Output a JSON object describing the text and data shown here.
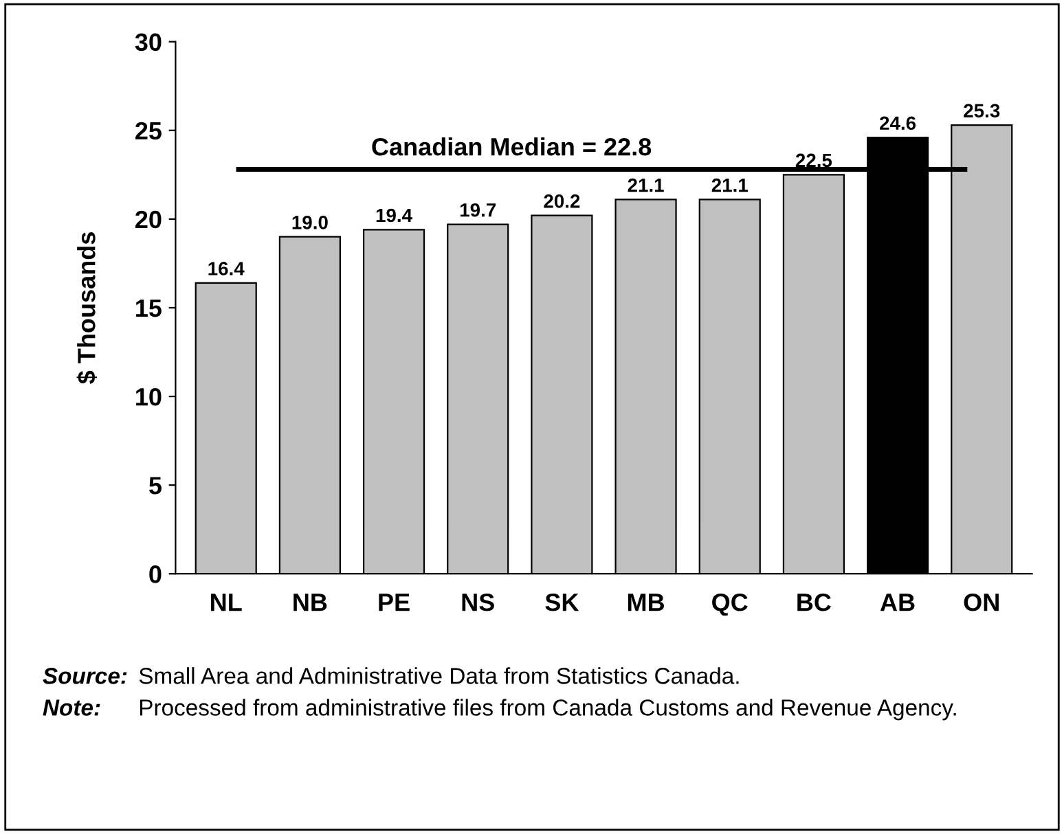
{
  "chart_data": {
    "type": "bar",
    "ylabel": "$ Thousands",
    "categories": [
      "NL",
      "NB",
      "PE",
      "NS",
      "SK",
      "MB",
      "QC",
      "BC",
      "AB",
      "ON"
    ],
    "values": [
      16.4,
      19.0,
      19.4,
      19.7,
      20.2,
      21.1,
      21.1,
      22.5,
      24.6,
      25.3
    ],
    "value_labels": [
      "16.4",
      "19.0",
      "19.4",
      "19.7",
      "20.2",
      "21.1",
      "21.1",
      "22.5",
      "24.6",
      "25.3"
    ],
    "colors": [
      "#c0c0c0",
      "#c0c0c0",
      "#c0c0c0",
      "#c0c0c0",
      "#c0c0c0",
      "#c0c0c0",
      "#c0c0c0",
      "#c0c0c0",
      "#000000",
      "#c0c0c0"
    ],
    "ylim": [
      0,
      30
    ],
    "yticks": [
      0,
      5,
      10,
      15,
      20,
      25,
      30
    ],
    "grid": false,
    "legend": false,
    "ref_lines": [
      {
        "axis": "y",
        "value": 22.8,
        "label": "Canadian Median = 22.8",
        "color": "#000000"
      }
    ],
    "annotations": [
      "Source: Small Area and Administrative Data from Statistics Canada.",
      "Note: Processed from administrative files from Canada Customs and Revenue Agency."
    ]
  }
}
